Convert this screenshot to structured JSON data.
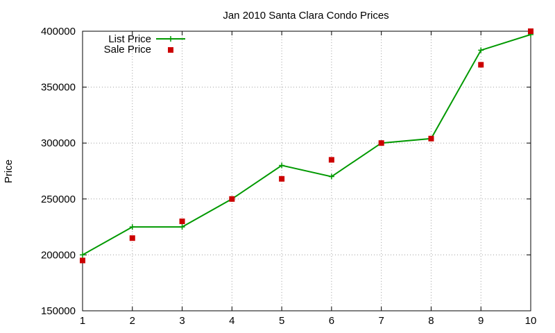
{
  "chart_data": {
    "type": "line",
    "title": "Jan 2010 Santa Clara Condo Prices",
    "xlabel": "",
    "ylabel": "Price",
    "x": [
      1,
      2,
      3,
      4,
      5,
      6,
      7,
      8,
      9,
      10
    ],
    "xlim": [
      1,
      10
    ],
    "ylim": [
      150000,
      400000
    ],
    "xticks": [
      1,
      2,
      3,
      4,
      5,
      6,
      7,
      8,
      9,
      10
    ],
    "yticks": [
      150000,
      200000,
      250000,
      300000,
      350000,
      400000
    ],
    "grid": true,
    "legend": "top-left",
    "series": [
      {
        "name": "List Price",
        "style": "line-with-plus-markers",
        "color": "#009900",
        "values": [
          200000,
          225000,
          225000,
          250000,
          280000,
          270000,
          300000,
          304000,
          383000,
          397000
        ]
      },
      {
        "name": "Sale Price",
        "style": "square-points",
        "color": "#cc0000",
        "values": [
          195000,
          215000,
          230000,
          250000,
          268000,
          285000,
          300000,
          304000,
          370000,
          400000
        ]
      }
    ]
  }
}
